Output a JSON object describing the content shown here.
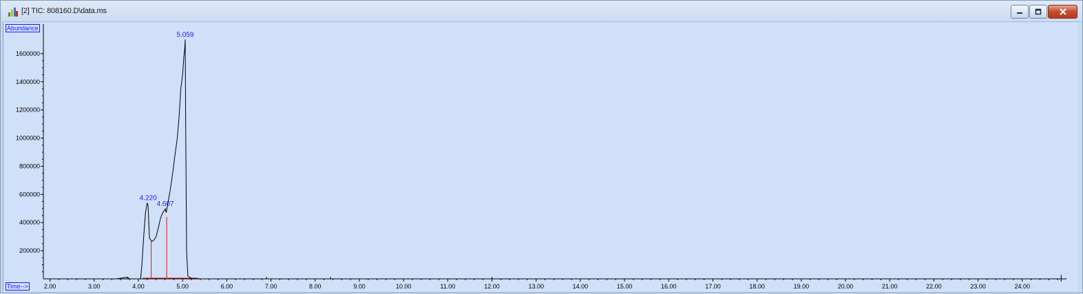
{
  "window": {
    "title": "[2] TIC: 808160.D\\data.ms"
  },
  "chart_data": {
    "type": "line",
    "ylabel": "Abundance",
    "xlabel": "Time-->",
    "xlim": [
      1.85,
      25.0
    ],
    "ylim": [
      0,
      1800000
    ],
    "x_ticks": [
      "2.00",
      "3.00",
      "4.00",
      "5.00",
      "6.00",
      "7.00",
      "8.00",
      "9.00",
      "10.00",
      "11.00",
      "12.00",
      "13.00",
      "14.00",
      "15.00",
      "16.00",
      "17.00",
      "18.00",
      "19.00",
      "20.00",
      "21.00",
      "22.00",
      "23.00",
      "24.00"
    ],
    "y_ticks": [
      "200000",
      "400000",
      "600000",
      "800000",
      "1000000",
      "1200000",
      "1400000",
      "1600000"
    ],
    "series": [
      {
        "x": [
          1.85,
          3.5,
          3.75,
          3.8,
          4.05,
          4.08,
          4.12,
          4.16,
          4.2,
          4.22,
          4.25,
          4.3,
          4.35,
          4.4,
          4.45,
          4.5,
          4.55,
          4.6,
          4.607,
          4.63,
          4.68,
          4.72,
          4.78,
          4.82,
          4.88,
          4.92,
          4.96,
          5.0,
          5.03,
          5.05,
          5.059,
          5.07,
          5.09,
          5.12,
          5.2,
          5.4,
          6.0,
          8.4,
          25.0
        ],
        "y": [
          0,
          0,
          12000,
          0,
          0,
          100000,
          300000,
          470000,
          540000,
          520000,
          290000,
          265000,
          275000,
          300000,
          360000,
          430000,
          470000,
          490000,
          500000,
          470000,
          560000,
          630000,
          760000,
          860000,
          1000000,
          1150000,
          1350000,
          1450000,
          1580000,
          1640000,
          1700000,
          1100000,
          200000,
          20000,
          4000,
          0,
          0,
          0,
          0
        ]
      }
    ],
    "peaks": [
      {
        "rt": "4.220",
        "x": 4.22,
        "y": 540000
      },
      {
        "rt": "4.607",
        "x": 4.607,
        "y": 500000
      },
      {
        "rt": "5.059",
        "x": 5.059,
        "y": 1700000
      }
    ],
    "integration_markers": [
      {
        "x": 4.29,
        "y": 265000
      },
      {
        "x": 4.64,
        "y": 440000
      }
    ],
    "colors": {
      "trace": "#000000",
      "peak_label": "#1a1aff",
      "integration": "#e01010",
      "background": "#d0e0f8"
    }
  }
}
